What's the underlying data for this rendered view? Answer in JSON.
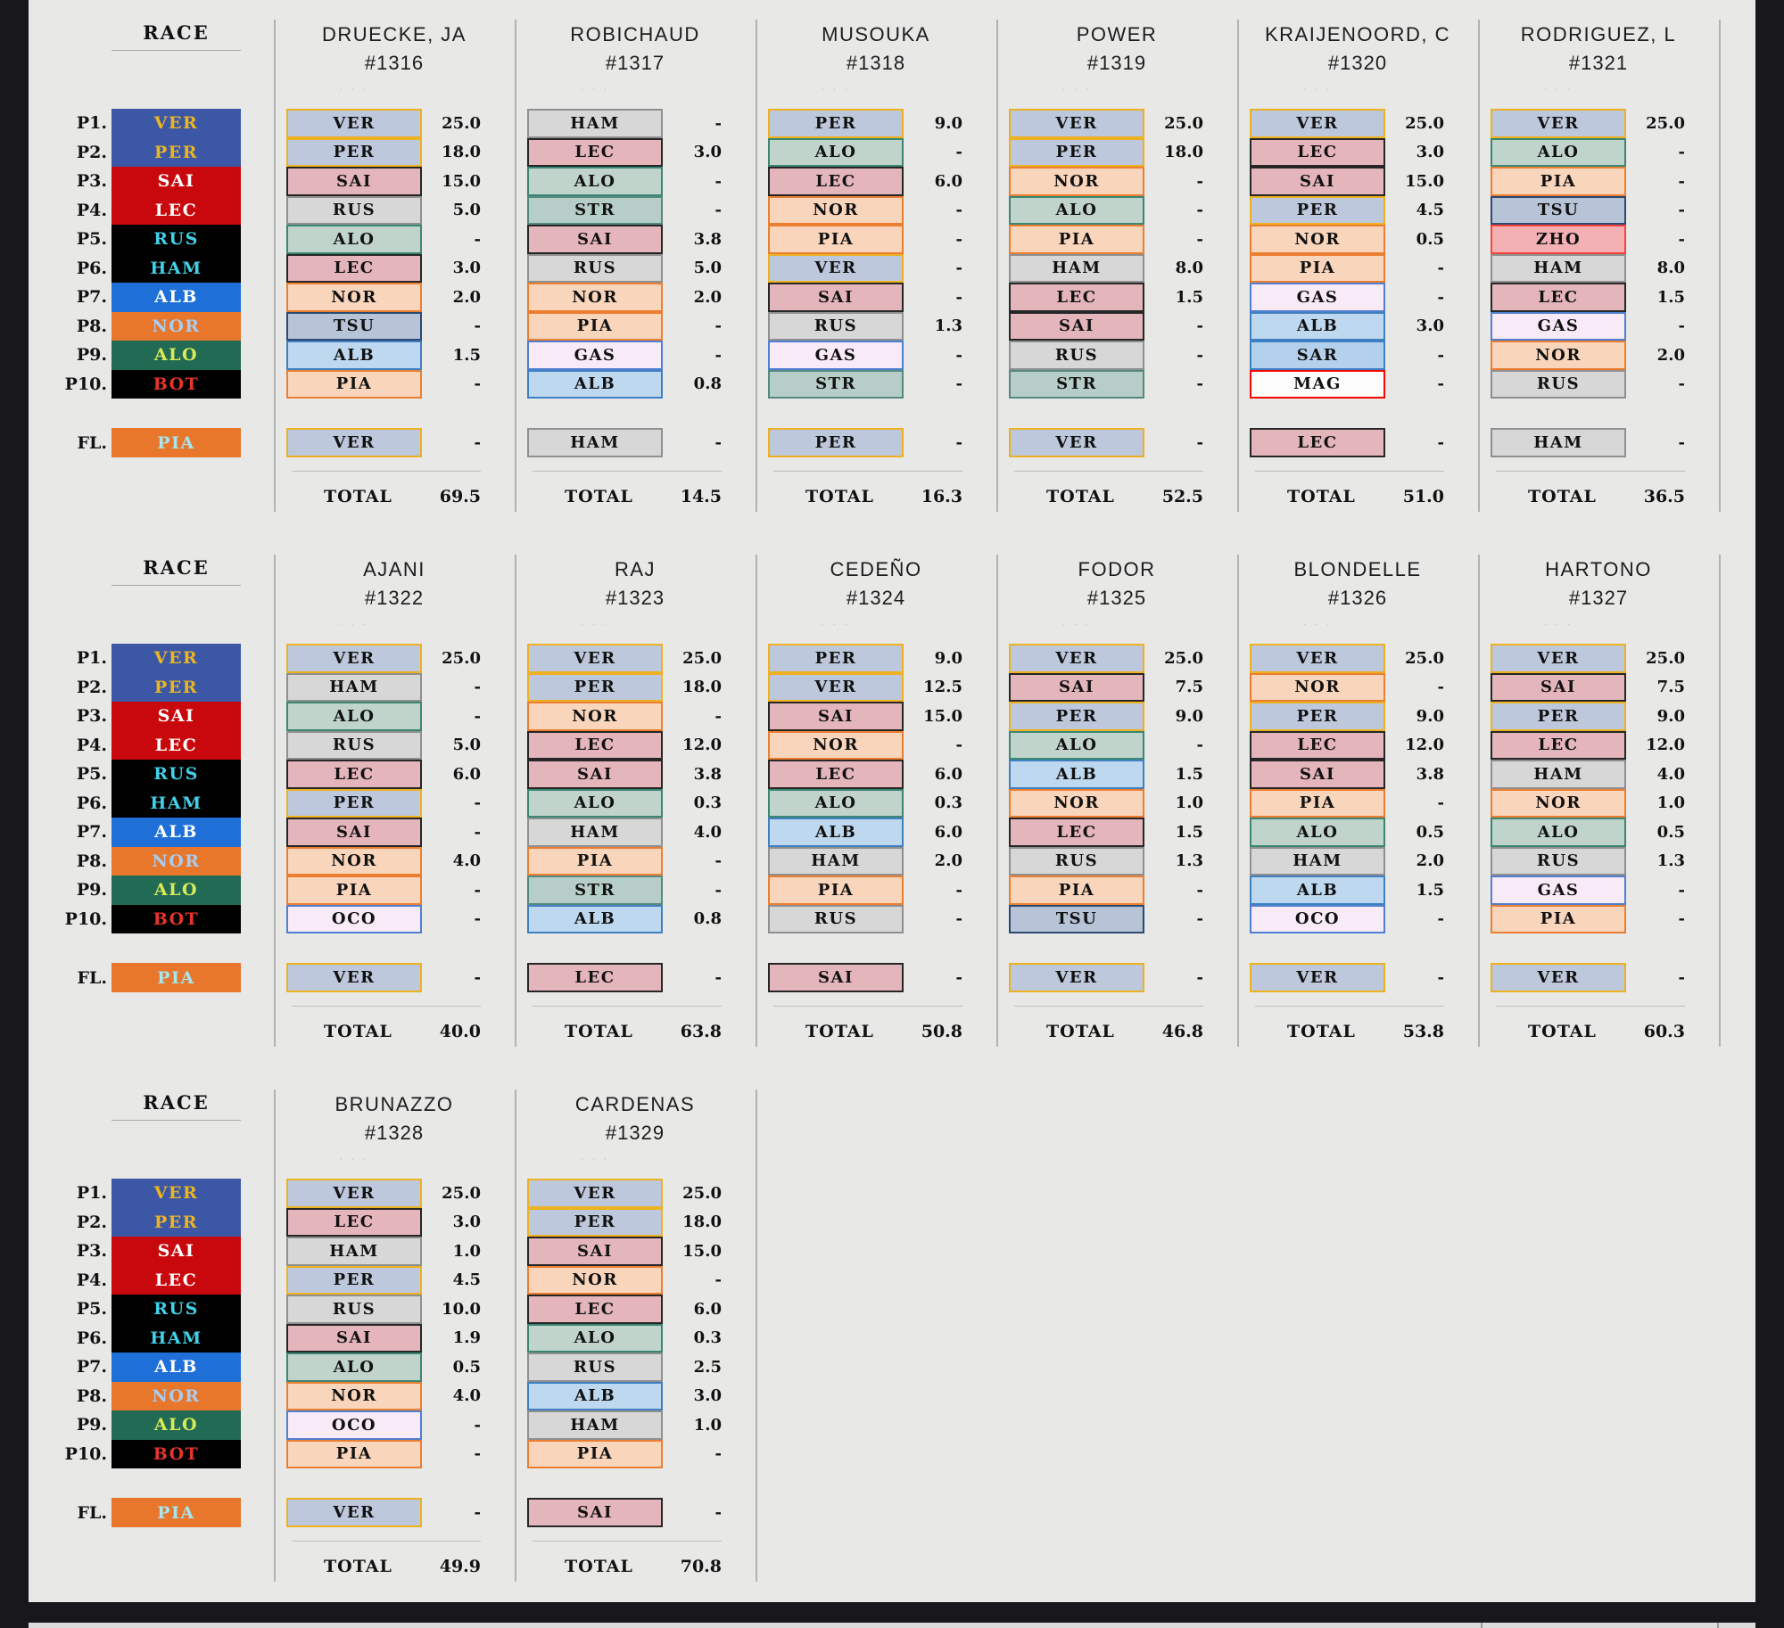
{
  "teams": {
    "VER": {
      "fill": "#bdc8dc",
      "border": "#eeb11f",
      "race_bg": "#3b57a5",
      "race_fg": "#edb51f"
    },
    "PER": {
      "fill": "#bdc8dc",
      "border": "#eeb11f",
      "race_bg": "#3b57a5",
      "race_fg": "#edb51f"
    },
    "SAI": {
      "fill": "#e4b5bb",
      "border": "#262626",
      "race_bg": "#c9080d",
      "race_fg": "#ffffff"
    },
    "LEC": {
      "fill": "#e4b5bb",
      "border": "#262626",
      "race_bg": "#c9080d",
      "race_fg": "#ffffff"
    },
    "RUS": {
      "fill": "#d7d7d7",
      "border": "#8f8f8f",
      "race_bg": "#000000",
      "race_fg": "#41d1e8"
    },
    "HAM": {
      "fill": "#d7d7d7",
      "border": "#8f8f8f",
      "race_bg": "#000000",
      "race_fg": "#41d1e8"
    },
    "ALB": {
      "fill": "#bed8ef",
      "border": "#4080c0",
      "race_bg": "#1e70d8",
      "race_fg": "#ffffff"
    },
    "NOR": {
      "fill": "#f8d5bb",
      "border": "#ec7e31",
      "race_bg": "#e8772c",
      "race_fg": "#a9cdf0"
    },
    "PIA": {
      "fill": "#f8d5bb",
      "border": "#ec7e31",
      "race_bg": "#e8772c",
      "race_fg": "#a5e6ef"
    },
    "ALO": {
      "fill": "#c0d4cc",
      "border": "#3a8673",
      "race_bg": "#216a53",
      "race_fg": "#dcea55"
    },
    "STR": {
      "fill": "#b7cec8",
      "border": "#55887e",
      "race_bg": "#216a53",
      "race_fg": "#dcea55"
    },
    "BOT": {
      "fill": "#d7d7d7",
      "border": "#8f8f8f",
      "race_bg": "#000000",
      "race_fg": "#e7352b"
    },
    "TSU": {
      "fill": "#b7c4d7",
      "border": "#2b4a70",
      "race_bg": "#2b4a70",
      "race_fg": "#ffffff"
    },
    "GAS": {
      "fill": "#f9eaf7",
      "border": "#4e7fd0",
      "race_bg": "#d988c0",
      "race_fg": "#ffffff"
    },
    "OCO": {
      "fill": "#f9eaf7",
      "border": "#4e7fd0",
      "race_bg": "#d988c0",
      "race_fg": "#ffffff"
    },
    "SAR": {
      "fill": "#b3d0ec",
      "border": "#3e7fc6",
      "race_bg": "#1e70d8",
      "race_fg": "#ffffff"
    },
    "MAG": {
      "fill": "#fcfcfc",
      "border": "#f80600",
      "race_bg": "#ffffff",
      "race_fg": "#f80600"
    },
    "ZHO": {
      "fill": "#f3b1b5",
      "border": "#f9423a",
      "race_bg": "#9b0000",
      "race_fg": "#ffffff"
    }
  },
  "race_panel": {
    "title": "RACE",
    "position_labels": [
      "P1.",
      "P2.",
      "P3.",
      "P4.",
      "P5.",
      "P6.",
      "P7.",
      "P8.",
      "P9.",
      "P10."
    ],
    "fl_label": "FL.",
    "results": [
      "VER",
      "PER",
      "SAI",
      "LEC",
      "RUS",
      "HAM",
      "ALB",
      "NOR",
      "ALO",
      "BOT"
    ],
    "fastest_lap": "PIA"
  },
  "total_label": "TOTAL",
  "dots": "· · ·",
  "sections": [
    {
      "players": [
        {
          "name": "DRUECKE, JA",
          "id": "#1316",
          "picks": [
            {
              "code": "VER",
              "pts": "25.0"
            },
            {
              "code": "PER",
              "pts": "18.0"
            },
            {
              "code": "SAI",
              "pts": "15.0"
            },
            {
              "code": "RUS",
              "pts": "5.0"
            },
            {
              "code": "ALO",
              "pts": "-"
            },
            {
              "code": "LEC",
              "pts": "3.0"
            },
            {
              "code": "NOR",
              "pts": "2.0"
            },
            {
              "code": "TSU",
              "pts": "-"
            },
            {
              "code": "ALB",
              "pts": "1.5"
            },
            {
              "code": "PIA",
              "pts": "-"
            }
          ],
          "fl": {
            "code": "VER",
            "pts": "-"
          },
          "total": "69.5"
        },
        {
          "name": "ROBICHAUD",
          "id": "#1317",
          "picks": [
            {
              "code": "HAM",
              "pts": "-"
            },
            {
              "code": "LEC",
              "pts": "3.0"
            },
            {
              "code": "ALO",
              "pts": "-"
            },
            {
              "code": "STR",
              "pts": "-"
            },
            {
              "code": "SAI",
              "pts": "3.8"
            },
            {
              "code": "RUS",
              "pts": "5.0"
            },
            {
              "code": "NOR",
              "pts": "2.0"
            },
            {
              "code": "PIA",
              "pts": "-"
            },
            {
              "code": "GAS",
              "pts": "-"
            },
            {
              "code": "ALB",
              "pts": "0.8"
            }
          ],
          "fl": {
            "code": "HAM",
            "pts": "-"
          },
          "total": "14.5"
        },
        {
          "name": "MUSOUKA",
          "id": "#1318",
          "picks": [
            {
              "code": "PER",
              "pts": "9.0"
            },
            {
              "code": "ALO",
              "pts": "-"
            },
            {
              "code": "LEC",
              "pts": "6.0"
            },
            {
              "code": "NOR",
              "pts": "-"
            },
            {
              "code": "PIA",
              "pts": "-"
            },
            {
              "code": "VER",
              "pts": "-"
            },
            {
              "code": "SAI",
              "pts": "-"
            },
            {
              "code": "RUS",
              "pts": "1.3"
            },
            {
              "code": "GAS",
              "pts": "-"
            },
            {
              "code": "STR",
              "pts": "-"
            }
          ],
          "fl": {
            "code": "PER",
            "pts": "-"
          },
          "total": "16.3"
        },
        {
          "name": "POWER",
          "id": "#1319",
          "picks": [
            {
              "code": "VER",
              "pts": "25.0"
            },
            {
              "code": "PER",
              "pts": "18.0"
            },
            {
              "code": "NOR",
              "pts": "-"
            },
            {
              "code": "ALO",
              "pts": "-"
            },
            {
              "code": "PIA",
              "pts": "-"
            },
            {
              "code": "HAM",
              "pts": "8.0"
            },
            {
              "code": "LEC",
              "pts": "1.5"
            },
            {
              "code": "SAI",
              "pts": "-"
            },
            {
              "code": "RUS",
              "pts": "-"
            },
            {
              "code": "STR",
              "pts": "-"
            }
          ],
          "fl": {
            "code": "VER",
            "pts": "-"
          },
          "total": "52.5"
        },
        {
          "name": "KRAIJENOORD, C",
          "id": "#1320",
          "picks": [
            {
              "code": "VER",
              "pts": "25.0"
            },
            {
              "code": "LEC",
              "pts": "3.0"
            },
            {
              "code": "SAI",
              "pts": "15.0"
            },
            {
              "code": "PER",
              "pts": "4.5"
            },
            {
              "code": "NOR",
              "pts": "0.5"
            },
            {
              "code": "PIA",
              "pts": "-"
            },
            {
              "code": "GAS",
              "pts": "-"
            },
            {
              "code": "ALB",
              "pts": "3.0"
            },
            {
              "code": "SAR",
              "pts": "-"
            },
            {
              "code": "MAG",
              "pts": "-"
            }
          ],
          "fl": {
            "code": "LEC",
            "pts": "-"
          },
          "total": "51.0"
        },
        {
          "name": "RODRIGUEZ, L",
          "id": "#1321",
          "picks": [
            {
              "code": "VER",
              "pts": "25.0"
            },
            {
              "code": "ALO",
              "pts": "-"
            },
            {
              "code": "PIA",
              "pts": "-"
            },
            {
              "code": "TSU",
              "pts": "-"
            },
            {
              "code": "ZHO",
              "pts": "-"
            },
            {
              "code": "HAM",
              "pts": "8.0"
            },
            {
              "code": "LEC",
              "pts": "1.5"
            },
            {
              "code": "GAS",
              "pts": "-"
            },
            {
              "code": "NOR",
              "pts": "2.0"
            },
            {
              "code": "RUS",
              "pts": "-"
            }
          ],
          "fl": {
            "code": "HAM",
            "pts": "-"
          },
          "total": "36.5"
        }
      ]
    },
    {
      "players": [
        {
          "name": "AJANI",
          "id": "#1322",
          "picks": [
            {
              "code": "VER",
              "pts": "25.0"
            },
            {
              "code": "HAM",
              "pts": "-"
            },
            {
              "code": "ALO",
              "pts": "-"
            },
            {
              "code": "RUS",
              "pts": "5.0"
            },
            {
              "code": "LEC",
              "pts": "6.0"
            },
            {
              "code": "PER",
              "pts": "-"
            },
            {
              "code": "SAI",
              "pts": "-"
            },
            {
              "code": "NOR",
              "pts": "4.0"
            },
            {
              "code": "PIA",
              "pts": "-"
            },
            {
              "code": "OCO",
              "pts": "-"
            }
          ],
          "fl": {
            "code": "VER",
            "pts": "-"
          },
          "total": "40.0"
        },
        {
          "name": "RAJ",
          "id": "#1323",
          "picks": [
            {
              "code": "VER",
              "pts": "25.0"
            },
            {
              "code": "PER",
              "pts": "18.0"
            },
            {
              "code": "NOR",
              "pts": "-"
            },
            {
              "code": "LEC",
              "pts": "12.0"
            },
            {
              "code": "SAI",
              "pts": "3.8"
            },
            {
              "code": "ALO",
              "pts": "0.3"
            },
            {
              "code": "HAM",
              "pts": "4.0"
            },
            {
              "code": "PIA",
              "pts": "-"
            },
            {
              "code": "STR",
              "pts": "-"
            },
            {
              "code": "ALB",
              "pts": "0.8"
            }
          ],
          "fl": {
            "code": "LEC",
            "pts": "-"
          },
          "total": "63.8"
        },
        {
          "name": "CEDEÑO",
          "id": "#1324",
          "picks": [
            {
              "code": "PER",
              "pts": "9.0"
            },
            {
              "code": "VER",
              "pts": "12.5"
            },
            {
              "code": "SAI",
              "pts": "15.0"
            },
            {
              "code": "NOR",
              "pts": "-"
            },
            {
              "code": "LEC",
              "pts": "6.0"
            },
            {
              "code": "ALO",
              "pts": "0.3"
            },
            {
              "code": "ALB",
              "pts": "6.0"
            },
            {
              "code": "HAM",
              "pts": "2.0"
            },
            {
              "code": "PIA",
              "pts": "-"
            },
            {
              "code": "RUS",
              "pts": "-"
            }
          ],
          "fl": {
            "code": "SAI",
            "pts": "-"
          },
          "total": "50.8"
        },
        {
          "name": "FODOR",
          "id": "#1325",
          "picks": [
            {
              "code": "VER",
              "pts": "25.0"
            },
            {
              "code": "SAI",
              "pts": "7.5"
            },
            {
              "code": "PER",
              "pts": "9.0"
            },
            {
              "code": "ALO",
              "pts": "-"
            },
            {
              "code": "ALB",
              "pts": "1.5"
            },
            {
              "code": "NOR",
              "pts": "1.0"
            },
            {
              "code": "LEC",
              "pts": "1.5"
            },
            {
              "code": "RUS",
              "pts": "1.3"
            },
            {
              "code": "PIA",
              "pts": "-"
            },
            {
              "code": "TSU",
              "pts": "-"
            }
          ],
          "fl": {
            "code": "VER",
            "pts": "-"
          },
          "total": "46.8"
        },
        {
          "name": "BLONDELLE",
          "id": "#1326",
          "picks": [
            {
              "code": "VER",
              "pts": "25.0"
            },
            {
              "code": "NOR",
              "pts": "-"
            },
            {
              "code": "PER",
              "pts": "9.0"
            },
            {
              "code": "LEC",
              "pts": "12.0"
            },
            {
              "code": "SAI",
              "pts": "3.8"
            },
            {
              "code": "PIA",
              "pts": "-"
            },
            {
              "code": "ALO",
              "pts": "0.5"
            },
            {
              "code": "HAM",
              "pts": "2.0"
            },
            {
              "code": "ALB",
              "pts": "1.5"
            },
            {
              "code": "OCO",
              "pts": "-"
            }
          ],
          "fl": {
            "code": "VER",
            "pts": "-"
          },
          "total": "53.8"
        },
        {
          "name": "HARTONO",
          "id": "#1327",
          "picks": [
            {
              "code": "VER",
              "pts": "25.0"
            },
            {
              "code": "SAI",
              "pts": "7.5"
            },
            {
              "code": "PER",
              "pts": "9.0"
            },
            {
              "code": "LEC",
              "pts": "12.0"
            },
            {
              "code": "HAM",
              "pts": "4.0"
            },
            {
              "code": "NOR",
              "pts": "1.0"
            },
            {
              "code": "ALO",
              "pts": "0.5"
            },
            {
              "code": "RUS",
              "pts": "1.3"
            },
            {
              "code": "GAS",
              "pts": "-"
            },
            {
              "code": "PIA",
              "pts": "-"
            }
          ],
          "fl": {
            "code": "VER",
            "pts": "-"
          },
          "total": "60.3"
        }
      ]
    },
    {
      "players": [
        {
          "name": "BRUNAZZO",
          "id": "#1328",
          "picks": [
            {
              "code": "VER",
              "pts": "25.0"
            },
            {
              "code": "LEC",
              "pts": "3.0"
            },
            {
              "code": "HAM",
              "pts": "1.0"
            },
            {
              "code": "PER",
              "pts": "4.5"
            },
            {
              "code": "RUS",
              "pts": "10.0"
            },
            {
              "code": "SAI",
              "pts": "1.9"
            },
            {
              "code": "ALO",
              "pts": "0.5"
            },
            {
              "code": "NOR",
              "pts": "4.0"
            },
            {
              "code": "OCO",
              "pts": "-"
            },
            {
              "code": "PIA",
              "pts": "-"
            }
          ],
          "fl": {
            "code": "VER",
            "pts": "-"
          },
          "total": "49.9"
        },
        {
          "name": "CARDENAS",
          "id": "#1329",
          "picks": [
            {
              "code": "VER",
              "pts": "25.0"
            },
            {
              "code": "PER",
              "pts": "18.0"
            },
            {
              "code": "SAI",
              "pts": "15.0"
            },
            {
              "code": "NOR",
              "pts": "-"
            },
            {
              "code": "LEC",
              "pts": "6.0"
            },
            {
              "code": "ALO",
              "pts": "0.3"
            },
            {
              "code": "RUS",
              "pts": "2.5"
            },
            {
              "code": "ALB",
              "pts": "3.0"
            },
            {
              "code": "HAM",
              "pts": "1.0"
            },
            {
              "code": "PIA",
              "pts": "-"
            }
          ],
          "fl": {
            "code": "SAI",
            "pts": "-"
          },
          "total": "70.8"
        }
      ]
    }
  ]
}
